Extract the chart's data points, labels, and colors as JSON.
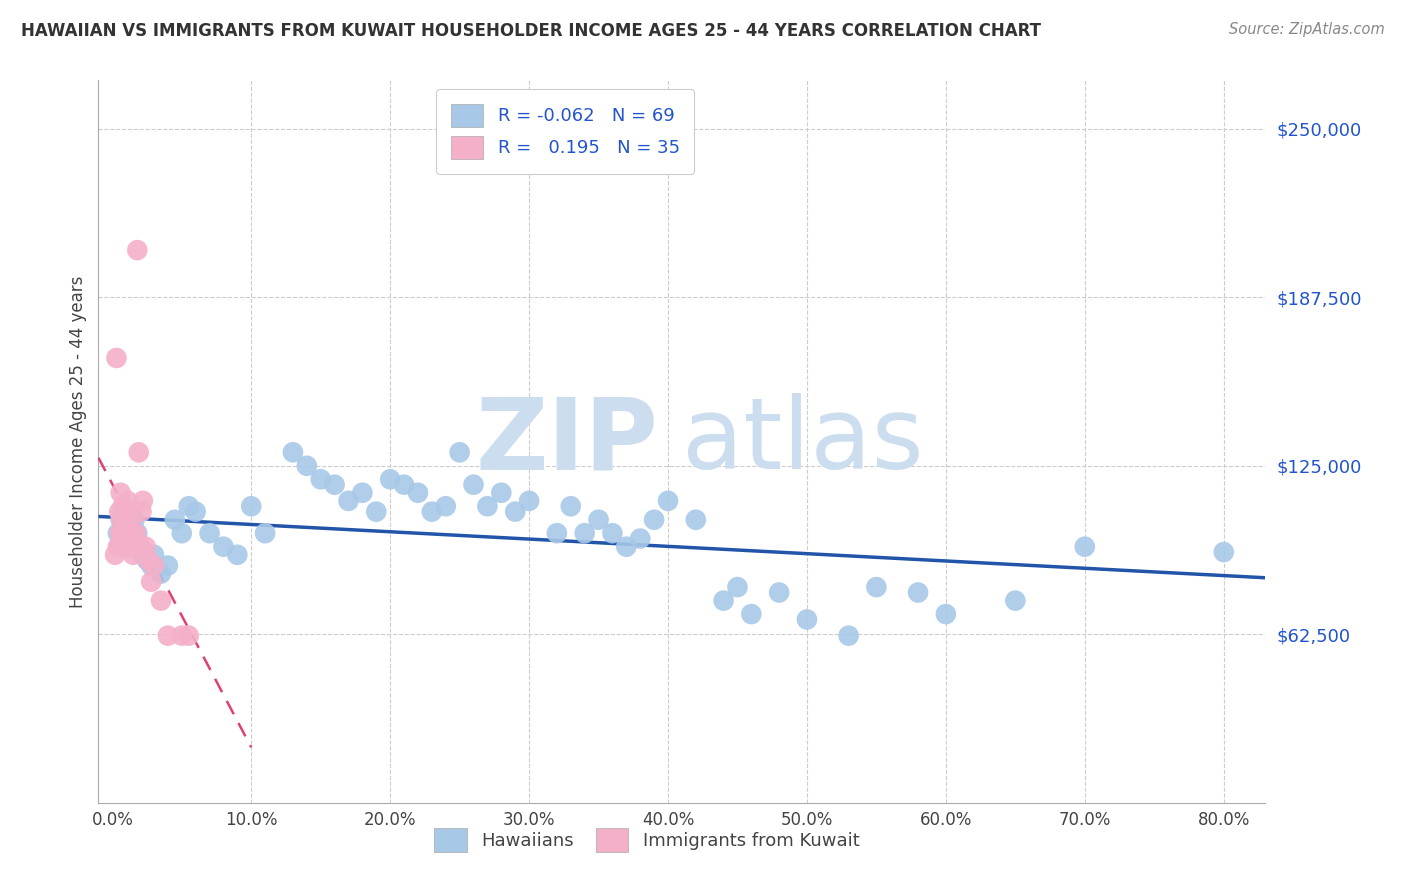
{
  "title": "HAWAIIAN VS IMMIGRANTS FROM KUWAIT HOUSEHOLDER INCOME AGES 25 - 44 YEARS CORRELATION CHART",
  "source": "Source: ZipAtlas.com",
  "ylabel": "Householder Income Ages 25 - 44 years",
  "xlabel_ticks": [
    "0.0%",
    "10.0%",
    "20.0%",
    "30.0%",
    "40.0%",
    "50.0%",
    "60.0%",
    "70.0%",
    "80.0%"
  ],
  "xlabel_vals": [
    0,
    10,
    20,
    30,
    40,
    50,
    60,
    70,
    80
  ],
  "ytick_labels": [
    "$62,500",
    "$125,000",
    "$187,500",
    "$250,000"
  ],
  "ytick_vals": [
    62500,
    125000,
    187500,
    250000
  ],
  "ylim": [
    0,
    268000
  ],
  "xlim": [
    -1,
    83
  ],
  "r_hawaiian": -0.062,
  "n_hawaiian": 69,
  "r_kuwait": 0.195,
  "n_kuwait": 35,
  "hawaiian_color": "#a8c8e8",
  "kuwait_color": "#f4b0c8",
  "hawaiian_line_color": "#2255aa",
  "kuwait_line_color": "#e04070",
  "watermark_zip": "ZIP",
  "watermark_atlas": "atlas",
  "watermark_color": "#ccddf0",
  "background_color": "#ffffff",
  "grid_color": "#cccccc",
  "hawaiians_x": [
    0.4,
    0.5,
    0.6,
    0.7,
    0.8,
    0.9,
    1.0,
    1.1,
    1.2,
    1.3,
    1.5,
    1.6,
    1.8,
    2.0,
    2.2,
    2.5,
    2.8,
    3.0,
    3.5,
    4.0,
    4.5,
    5.0,
    5.5,
    6.0,
    7.0,
    8.0,
    9.0,
    10.0,
    11.0,
    13.0,
    14.0,
    15.0,
    16.0,
    17.0,
    18.0,
    19.0,
    20.0,
    21.0,
    22.0,
    23.0,
    24.0,
    25.0,
    26.0,
    27.0,
    28.0,
    29.0,
    30.0,
    32.0,
    33.0,
    34.0,
    35.0,
    36.0,
    37.0,
    38.0,
    39.0,
    40.0,
    42.0,
    44.0,
    45.0,
    46.0,
    48.0,
    50.0,
    53.0,
    55.0,
    58.0,
    60.0,
    65.0,
    70.0,
    80.0
  ],
  "hawaiians_y": [
    100000,
    95000,
    105000,
    100000,
    98000,
    95000,
    102000,
    108000,
    100000,
    95000,
    98000,
    105000,
    100000,
    95000,
    92000,
    90000,
    88000,
    92000,
    85000,
    88000,
    105000,
    100000,
    110000,
    108000,
    100000,
    95000,
    92000,
    110000,
    100000,
    130000,
    125000,
    120000,
    118000,
    112000,
    115000,
    108000,
    120000,
    118000,
    115000,
    108000,
    110000,
    130000,
    118000,
    110000,
    115000,
    108000,
    112000,
    100000,
    110000,
    100000,
    105000,
    100000,
    95000,
    98000,
    105000,
    112000,
    105000,
    75000,
    80000,
    70000,
    78000,
    68000,
    62000,
    80000,
    78000,
    70000,
    75000,
    95000,
    93000
  ],
  "kuwait_x": [
    0.2,
    0.3,
    0.4,
    0.5,
    0.55,
    0.6,
    0.65,
    0.7,
    0.75,
    0.8,
    0.85,
    0.9,
    0.95,
    1.0,
    1.05,
    1.1,
    1.2,
    1.3,
    1.4,
    1.5,
    1.6,
    1.7,
    1.8,
    1.9,
    2.0,
    2.1,
    2.2,
    2.4,
    2.6,
    2.8,
    3.0,
    3.5,
    4.0,
    5.0,
    5.5
  ],
  "kuwait_y": [
    92000,
    165000,
    95000,
    108000,
    100000,
    115000,
    105000,
    98000,
    110000,
    95000,
    102000,
    108000,
    100000,
    95000,
    108000,
    112000,
    100000,
    105000,
    95000,
    92000,
    98000,
    100000,
    205000,
    130000,
    95000,
    108000,
    112000,
    95000,
    90000,
    82000,
    88000,
    75000,
    62000,
    62000,
    62000
  ]
}
